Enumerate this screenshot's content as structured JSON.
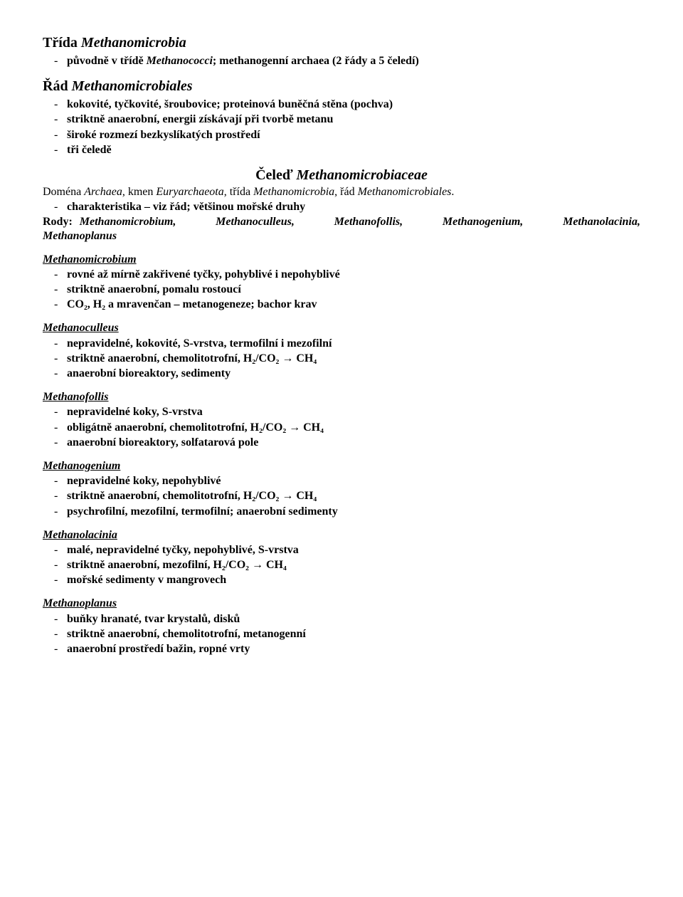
{
  "class": {
    "title_prefix": "Třída ",
    "title_name": "Methanomicrobia",
    "items": [
      {
        "pre": "původně v třídě ",
        "it": "Methanococci",
        "post": "; methanogenní archaea (2 řády a 5 čeledí)"
      }
    ]
  },
  "order": {
    "title_prefix": "Řád ",
    "title_name": "Methanomicrobiales",
    "items": [
      {
        "text": "kokovité, tyčkovité, šroubovice; proteinová buněčná stěna (pochva)"
      },
      {
        "text": "striktně anaerobní, energii získávají při tvorbě metanu"
      },
      {
        "text": "široké rozmezí bezkyslíkatých prostředí"
      },
      {
        "text": "tři čeledě"
      }
    ]
  },
  "family": {
    "title_prefix": "Čeleď ",
    "title_name": "Methanomicrobiaceae",
    "domain_line": {
      "d1": "Doména ",
      "d1i": "Archaea",
      "d2": ", kmen ",
      "d2i": "Euryarchaeota",
      "d3": ", třída ",
      "d3i": "Methanomicrobia",
      "d4": ", řád ",
      "d4i": "Methanomicrobiales",
      "d5": "."
    },
    "items": [
      {
        "text": "charakteristika – viz řád; většinou mořské druhy"
      }
    ],
    "rody_label": "Rody:",
    "rody_list": "Methanomicrobium, Methanoculleus, Methanofollis, Methanogenium, Methanolacinia, Methanoplanus",
    "rody_line2": "Methanoplanus"
  },
  "genera": [
    {
      "name": "Methanomicrobium",
      "items": [
        {
          "text": "rovné až mírně zakřivené tyčky, pohyblivé i nepohyblivé"
        },
        {
          "text": "striktně anaerobní, pomalu rostoucí"
        },
        {
          "text": "CO₂, H₂ a mravenčan – metanogeneze; bachor krav"
        }
      ]
    },
    {
      "name": "Methanoculleus",
      "items": [
        {
          "text": "nepravidelné, kokovité, S-vrstva, termofilní i mezofilní"
        },
        {
          "text": "striktně anaerobní, chemolitotrofní, H₂/CO₂ → CH₄"
        },
        {
          "text": "anaerobní bioreaktory, sedimenty"
        }
      ]
    },
    {
      "name": "Methanofollis",
      "items": [
        {
          "text": "nepravidelné koky, S-vrstva"
        },
        {
          "text": "obligátně anaerobní, chemolitotrofní, H₂/CO₂ → CH₄"
        },
        {
          "text": "anaerobní bioreaktory, solfatarová pole"
        }
      ]
    },
    {
      "name": "Methanogenium",
      "items": [
        {
          "text": "nepravidelné koky, nepohyblivé"
        },
        {
          "text": "striktně anaerobní, chemolitotrofní, H₂/CO₂ → CH₄"
        },
        {
          "text": "psychrofilní, mezofilní, termofilní; anaerobní sedimenty"
        }
      ]
    },
    {
      "name": "Methanolacinia",
      "items": [
        {
          "text": "malé, nepravidelné tyčky, nepohyblivé, S-vrstva"
        },
        {
          "text": "striktně anaerobní, mezofilní, H₂/CO₂ → CH₄"
        },
        {
          "text": "mořské sedimenty v mangrovech"
        }
      ]
    },
    {
      "name": "Methanoplanus",
      "items": [
        {
          "text": "buňky hranaté, tvar krystalů, disků"
        },
        {
          "text": "striktně anaerobní, chemolitotrofní, metanogenní"
        },
        {
          "text": "anaerobní prostředí bažin, ropné vrty"
        }
      ]
    }
  ]
}
